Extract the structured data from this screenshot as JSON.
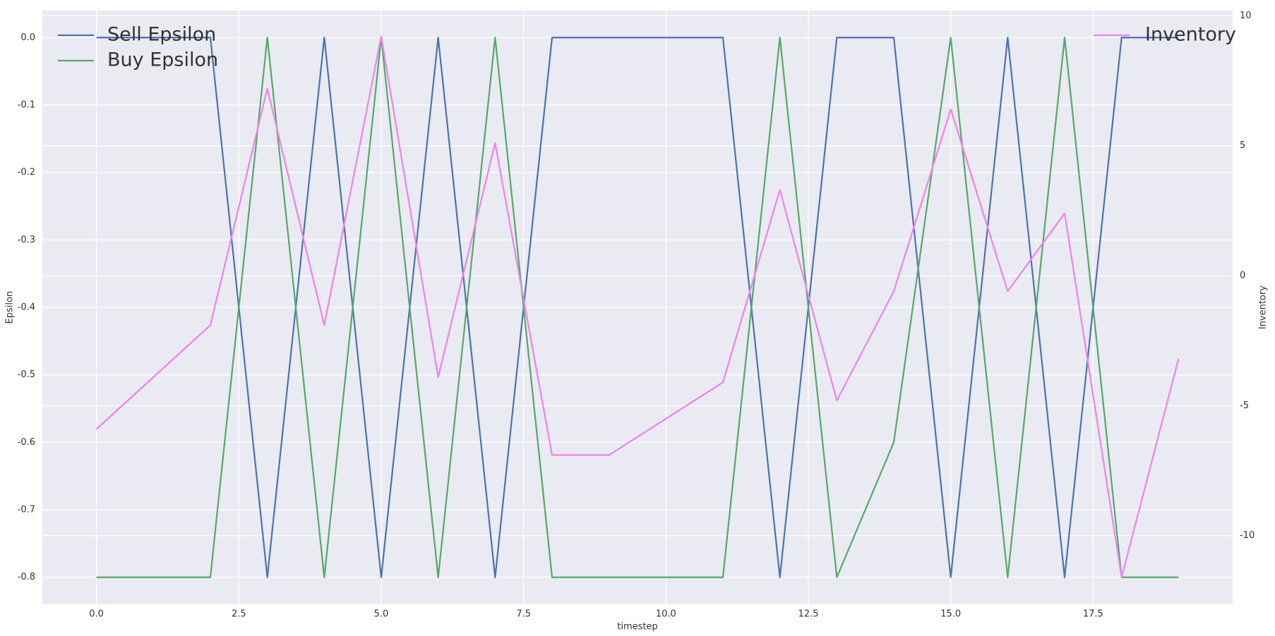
{
  "chart_data": {
    "type": "line",
    "xlabel": "timestep",
    "ylabel": "Epsilon",
    "y2label": "Inventory",
    "x": [
      0,
      1,
      2,
      3,
      4,
      5,
      6,
      7,
      8,
      9,
      10,
      11,
      12,
      13,
      14,
      15,
      16,
      17,
      18,
      19
    ],
    "series": [
      {
        "name": "Sell Epsilon",
        "color": "#4c72b0",
        "axis": "y",
        "values": [
          0,
          0,
          0,
          -0.8,
          0,
          -0.8,
          0,
          -0.8,
          0,
          0,
          0,
          0,
          -0.8,
          0,
          0,
          -0.8,
          0,
          -0.8,
          0,
          0
        ]
      },
      {
        "name": "Buy Epsilon",
        "color": "#55a868",
        "axis": "y",
        "values": [
          -0.8,
          -0.8,
          -0.8,
          0,
          -0.8,
          0,
          -0.8,
          0,
          -0.8,
          -0.8,
          -0.8,
          -0.8,
          0,
          -0.8,
          -0.6,
          0,
          -0.8,
          0,
          -0.8,
          -0.8
        ]
      },
      {
        "name": "Inventory",
        "color": "#ee82ee",
        "axis": "y2",
        "values": [
          -5.9,
          -3.9,
          -1.9,
          7.2,
          -1.9,
          9.2,
          -3.9,
          5.1,
          -6.9,
          -6.9,
          -5.5,
          -4.1,
          3.3,
          -4.8,
          -0.6,
          6.4,
          -0.6,
          2.4,
          -11.6,
          -3.2
        ]
      }
    ],
    "xlim": [
      -0.95,
      19.95
    ],
    "xticks": [
      {
        "value": 0,
        "label": "0.0"
      },
      {
        "value": 2.5,
        "label": "2.5"
      },
      {
        "value": 5,
        "label": "5.0"
      },
      {
        "value": 7.5,
        "label": "7.5"
      },
      {
        "value": 10,
        "label": "10.0"
      },
      {
        "value": 12.5,
        "label": "12.5"
      },
      {
        "value": 15,
        "label": "15.0"
      },
      {
        "value": 17.5,
        "label": "17.5"
      }
    ],
    "ylim": [
      -0.84,
      0.04
    ],
    "yticks": [
      {
        "value": 0,
        "label": "0.0"
      },
      {
        "value": -0.1,
        "label": "-0.1"
      },
      {
        "value": -0.2,
        "label": "-0.2"
      },
      {
        "value": -0.3,
        "label": "-0.3"
      },
      {
        "value": -0.4,
        "label": "-0.4"
      },
      {
        "value": -0.5,
        "label": "-0.5"
      },
      {
        "value": -0.6,
        "label": "-0.6"
      },
      {
        "value": -0.7,
        "label": "-0.7"
      },
      {
        "value": -0.8,
        "label": "-0.8"
      }
    ],
    "y2lim": [
      -12.64,
      10.2
    ],
    "y2ticks": [
      10,
      5,
      0,
      -5,
      -10
    ],
    "grid": true,
    "legend": "upper left",
    "legend2": "upper right"
  }
}
